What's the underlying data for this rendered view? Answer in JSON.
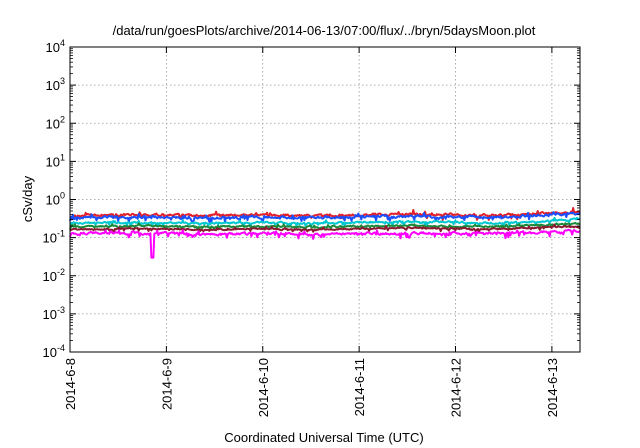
{
  "chart_data": {
    "type": "line",
    "title": "/data/run/goesPlots/archive/2014-06-13/07:00/flux/../bryn/5daysMoon.plot",
    "xlabel": "Coordinated Universal Time (UTC)",
    "ylabel": "cSv/day",
    "yscale": "log",
    "ylim": [
      0.0001,
      10000
    ],
    "y_ticks": [
      {
        "value": 0.0001,
        "base": "10",
        "exp": "-4"
      },
      {
        "value": 0.001,
        "base": "10",
        "exp": "-3"
      },
      {
        "value": 0.01,
        "base": "10",
        "exp": "-2"
      },
      {
        "value": 0.1,
        "base": "10",
        "exp": "-1"
      },
      {
        "value": 1,
        "base": "10",
        "exp": "0"
      },
      {
        "value": 10,
        "base": "10",
        "exp": "1"
      },
      {
        "value": 100,
        "base": "10",
        "exp": "2"
      },
      {
        "value": 1000,
        "base": "10",
        "exp": "3"
      },
      {
        "value": 10000,
        "base": "10",
        "exp": "4"
      }
    ],
    "xlim": [
      "2014-06-08 00:00",
      "2014-06-13 07:00"
    ],
    "x_ticks": [
      {
        "value": "2014-06-08 00:00",
        "label": "2014-6-8"
      },
      {
        "value": "2014-06-09 00:00",
        "label": "2014-6-9"
      },
      {
        "value": "2014-06-10 00:00",
        "label": "2014-6-10"
      },
      {
        "value": "2014-06-11 00:00",
        "label": "2014-6-11"
      },
      {
        "value": "2014-06-12 00:00",
        "label": "2014-6-12"
      },
      {
        "value": "2014-06-13 00:00",
        "label": "2014-6-13"
      }
    ],
    "grid": true,
    "series": [
      {
        "color": "#e0202a",
        "base": 0.4,
        "amp": 0.3,
        "samples": [
          [
            "2014-06-08 00:00",
            0.38
          ],
          [
            "2014-06-08 12:00",
            0.4
          ],
          [
            "2014-06-09 00:00",
            0.39
          ],
          [
            "2014-06-09 12:00",
            0.38
          ],
          [
            "2014-06-10 00:00",
            0.4
          ],
          [
            "2014-06-10 12:00",
            0.37
          ],
          [
            "2014-06-11 00:00",
            0.4
          ],
          [
            "2014-06-11 12:00",
            0.41
          ],
          [
            "2014-06-12 00:00",
            0.4
          ],
          [
            "2014-06-12 12:00",
            0.39
          ],
          [
            "2014-06-13 00:00",
            0.45
          ],
          [
            "2014-06-13 07:00",
            0.48
          ]
        ]
      },
      {
        "color": "#1a4fff",
        "base": 0.35,
        "amp": 0.3,
        "samples": [
          [
            "2014-06-08 00:00",
            0.33
          ],
          [
            "2014-06-08 12:00",
            0.35
          ],
          [
            "2014-06-09 00:00",
            0.34
          ],
          [
            "2014-06-09 12:00",
            0.33
          ],
          [
            "2014-06-10 00:00",
            0.35
          ],
          [
            "2014-06-10 12:00",
            0.33
          ],
          [
            "2014-06-11 00:00",
            0.35
          ],
          [
            "2014-06-11 12:00",
            0.36
          ],
          [
            "2014-06-12 00:00",
            0.35
          ],
          [
            "2014-06-12 12:00",
            0.34
          ],
          [
            "2014-06-13 00:00",
            0.4
          ],
          [
            "2014-06-13 07:00",
            0.42
          ]
        ]
      },
      {
        "color": "#00c8d0",
        "base": 0.25,
        "amp": 0.22,
        "samples": [
          [
            "2014-06-08 00:00",
            0.24
          ],
          [
            "2014-06-08 12:00",
            0.25
          ],
          [
            "2014-06-09 00:00",
            0.24
          ],
          [
            "2014-06-09 12:00",
            0.24
          ],
          [
            "2014-06-10 00:00",
            0.25
          ],
          [
            "2014-06-10 12:00",
            0.23
          ],
          [
            "2014-06-11 00:00",
            0.25
          ],
          [
            "2014-06-11 12:00",
            0.26
          ],
          [
            "2014-06-12 00:00",
            0.25
          ],
          [
            "2014-06-12 12:00",
            0.24
          ],
          [
            "2014-06-13 00:00",
            0.28
          ],
          [
            "2014-06-13 07:00",
            0.3
          ]
        ]
      },
      {
        "color": "#1a8a3a",
        "base": 0.2,
        "amp": 0.18,
        "samples": [
          [
            "2014-06-08 00:00",
            0.19
          ],
          [
            "2014-06-08 12:00",
            0.2
          ],
          [
            "2014-06-09 00:00",
            0.2
          ],
          [
            "2014-06-09 12:00",
            0.19
          ],
          [
            "2014-06-10 00:00",
            0.2
          ],
          [
            "2014-06-10 12:00",
            0.19
          ],
          [
            "2014-06-11 00:00",
            0.2
          ],
          [
            "2014-06-11 12:00",
            0.21
          ],
          [
            "2014-06-12 00:00",
            0.2
          ],
          [
            "2014-06-12 12:00",
            0.2
          ],
          [
            "2014-06-13 00:00",
            0.22
          ],
          [
            "2014-06-13 07:00",
            0.23
          ]
        ]
      },
      {
        "color": "#8a1a30",
        "base": 0.17,
        "amp": 0.15,
        "samples": [
          [
            "2014-06-08 00:00",
            0.16
          ],
          [
            "2014-06-08 12:00",
            0.17
          ],
          [
            "2014-06-09 00:00",
            0.17
          ],
          [
            "2014-06-09 12:00",
            0.16
          ],
          [
            "2014-06-10 00:00",
            0.17
          ],
          [
            "2014-06-10 12:00",
            0.16
          ],
          [
            "2014-06-11 00:00",
            0.17
          ],
          [
            "2014-06-11 12:00",
            0.18
          ],
          [
            "2014-06-12 00:00",
            0.17
          ],
          [
            "2014-06-12 12:00",
            0.17
          ],
          [
            "2014-06-13 00:00",
            0.19
          ],
          [
            "2014-06-13 07:00",
            0.2
          ]
        ]
      },
      {
        "color": "#ff00ff",
        "base": 0.13,
        "amp": 0.3,
        "dips": [
          [
            "2014-06-08 20:30",
            0.03
          ]
        ],
        "samples": [
          [
            "2014-06-08 00:00",
            0.13
          ],
          [
            "2014-06-08 12:00",
            0.13
          ],
          [
            "2014-06-09 00:00",
            0.13
          ],
          [
            "2014-06-09 12:00",
            0.12
          ],
          [
            "2014-06-10 00:00",
            0.13
          ],
          [
            "2014-06-10 12:00",
            0.12
          ],
          [
            "2014-06-11 00:00",
            0.13
          ],
          [
            "2014-06-11 12:00",
            0.13
          ],
          [
            "2014-06-12 00:00",
            0.13
          ],
          [
            "2014-06-12 12:00",
            0.13
          ],
          [
            "2014-06-13 00:00",
            0.14
          ],
          [
            "2014-06-13 07:00",
            0.15
          ]
        ]
      }
    ]
  }
}
